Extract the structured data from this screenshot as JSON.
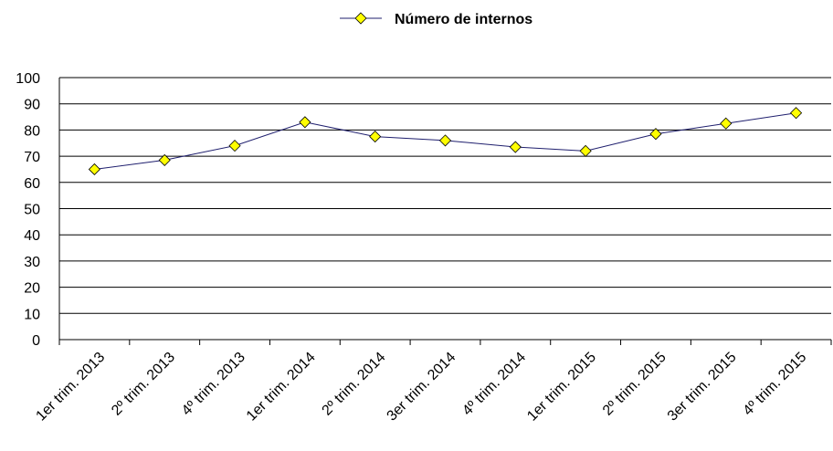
{
  "chart_data": {
    "type": "line",
    "categories": [
      "1er trim. 2013",
      "2º trim. 2013",
      "4º trim. 2013",
      "1er trim. 2014",
      "2º trim. 2014",
      "3er trim. 2014",
      "4º trim. 2014",
      "1er trim. 2015",
      "2º trim. 2015",
      "3er trim. 2015",
      "4º trim. 2015"
    ],
    "series": [
      {
        "name": "Número de internos",
        "color": "#ffff00",
        "line_color": "#1f1f6e",
        "values": [
          65,
          68.5,
          74,
          83,
          77.5,
          76,
          73.5,
          72,
          78.5,
          82.5,
          86.5
        ]
      }
    ],
    "ylim": [
      0,
      100
    ],
    "yticks": [
      0,
      10,
      20,
      30,
      40,
      50,
      60,
      70,
      80,
      90,
      100
    ],
    "grid": true,
    "legend": "top"
  }
}
